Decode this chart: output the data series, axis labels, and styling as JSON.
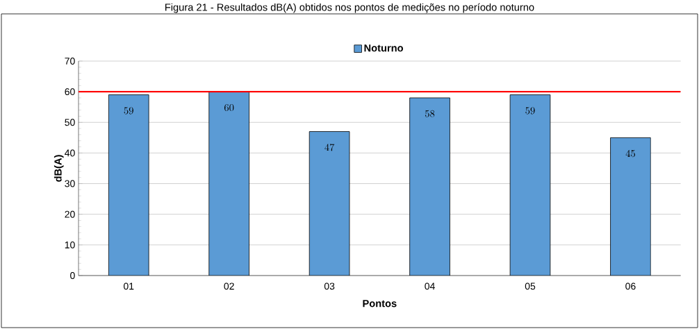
{
  "chart_data": {
    "type": "bar",
    "title": "Figura 21 - Resultados dB(A) obtidos nos pontos de medições no período noturno",
    "xlabel": "Pontos",
    "ylabel": "dB(A)",
    "categories": [
      "01",
      "02",
      "03",
      "04",
      "05",
      "06"
    ],
    "series": [
      {
        "name": "Noturno",
        "color": "#5b9bd5",
        "values": [
          59,
          60,
          47,
          58,
          59,
          45
        ]
      }
    ],
    "ylim": [
      0,
      70
    ],
    "yticks": [
      0,
      10,
      20,
      30,
      40,
      50,
      60,
      70
    ],
    "ref_lines": [
      {
        "axis": "y",
        "value": 60,
        "color": "#ff0000"
      }
    ],
    "grid": "y",
    "legend": "top",
    "data_labels": true
  }
}
